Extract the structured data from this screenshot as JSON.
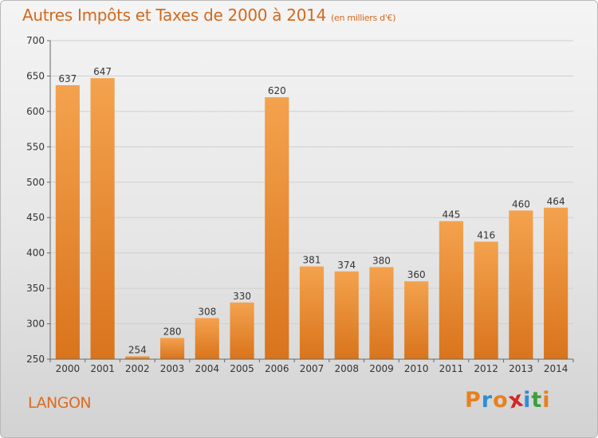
{
  "header": {
    "title": "Autres Impôts et Taxes de 2000 à 2014",
    "unit": "(en milliers d'€)"
  },
  "footer": {
    "town": "LANGON",
    "logo": "Proxiti",
    "logo_colors": [
      "#e8801e",
      "#2f8dd6",
      "#e8801e",
      "#d12828",
      "#2f8dd6",
      "#3ba03a",
      "#e8801e"
    ]
  },
  "colors": {
    "bar_top": "#f4a24e",
    "bar_bottom": "#d9741c",
    "accent": "#d2691e"
  },
  "chart_data": {
    "type": "bar",
    "categories": [
      "2000",
      "2001",
      "2002",
      "2003",
      "2004",
      "2005",
      "2006",
      "2007",
      "2008",
      "2009",
      "2010",
      "2011",
      "2012",
      "2013",
      "2014"
    ],
    "values": [
      637,
      647,
      254,
      280,
      308,
      330,
      620,
      381,
      374,
      380,
      360,
      445,
      416,
      460,
      464
    ],
    "ylim": [
      250,
      700
    ],
    "yticks": [
      250,
      300,
      350,
      400,
      450,
      500,
      550,
      600,
      650,
      700
    ],
    "grid": true
  }
}
